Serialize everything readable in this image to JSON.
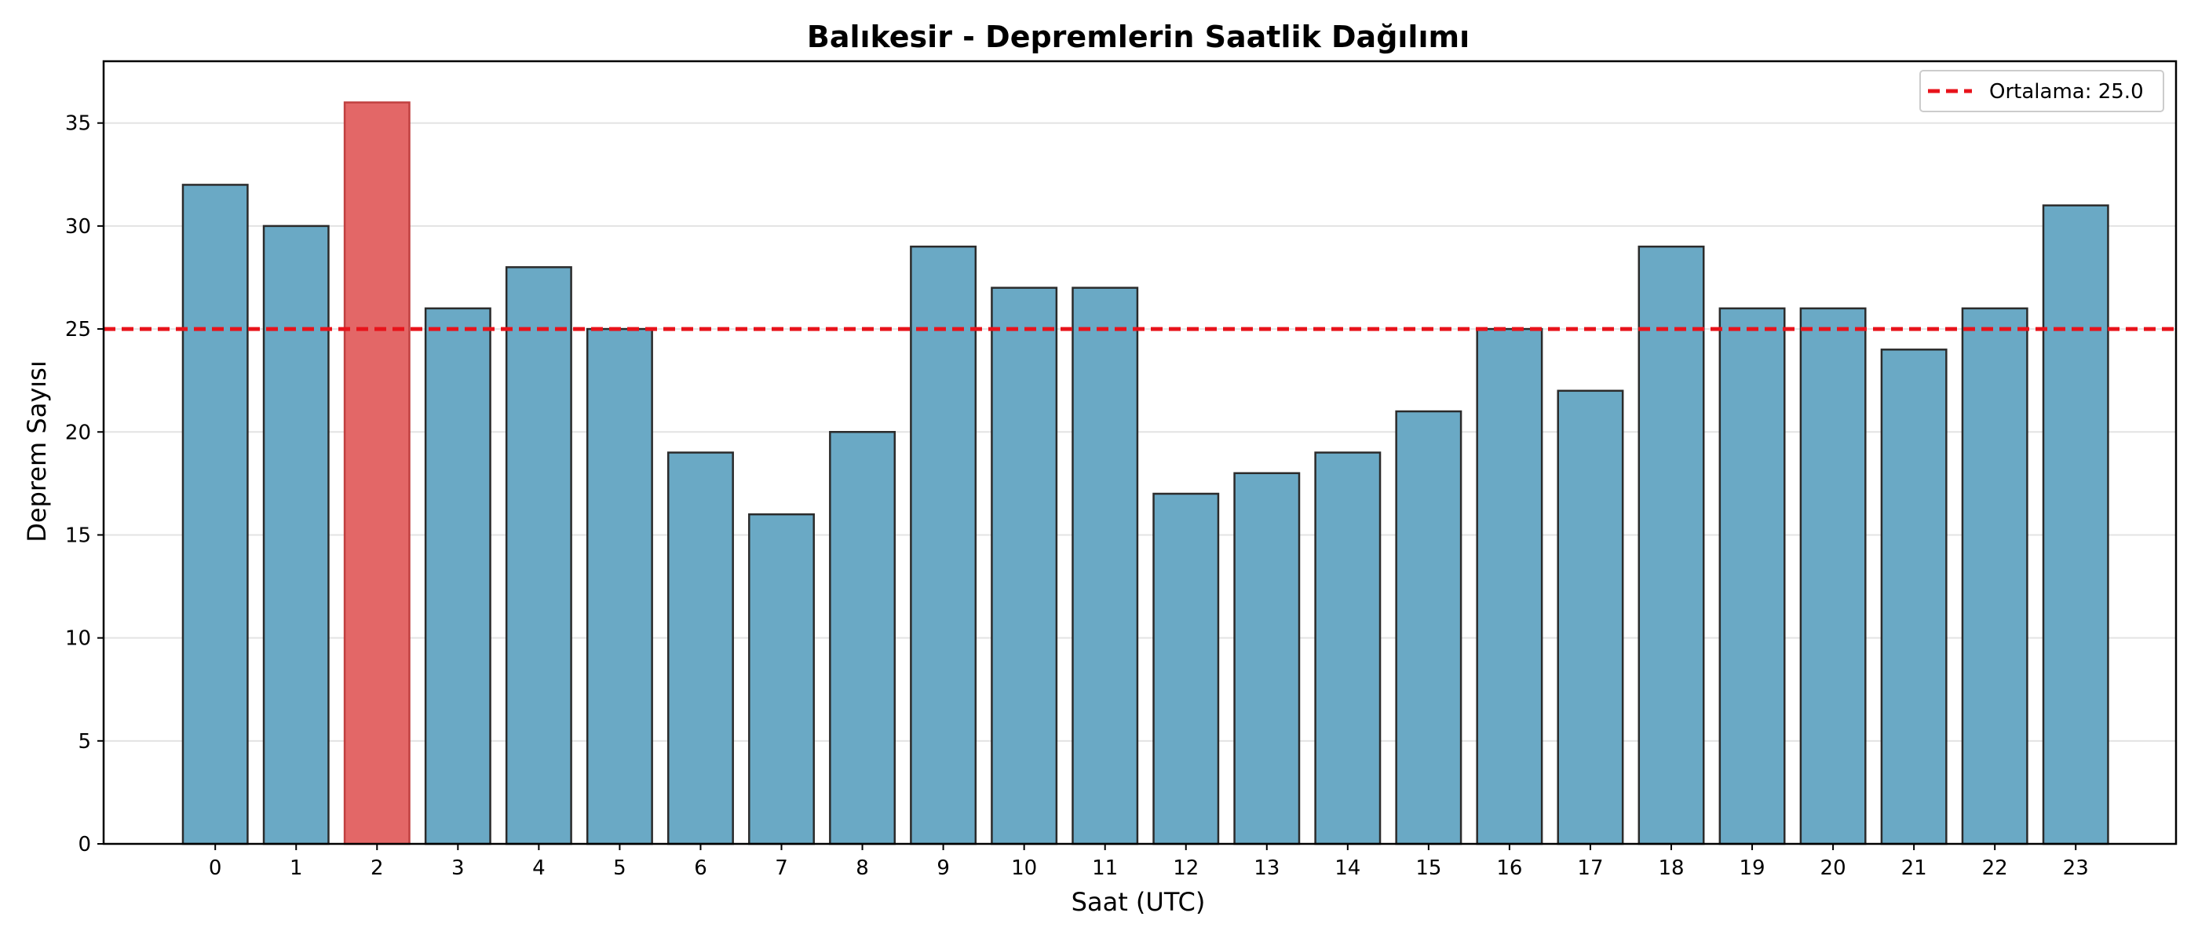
{
  "chart_data": {
    "type": "bar",
    "title": "Balıkesir - Depremlerin Saatlik Dağılımı",
    "xlabel": "Saat (UTC)",
    "ylabel": "Deprem Sayısı",
    "categories": [
      "0",
      "1",
      "2",
      "3",
      "4",
      "5",
      "6",
      "7",
      "8",
      "9",
      "10",
      "11",
      "12",
      "13",
      "14",
      "15",
      "16",
      "17",
      "18",
      "19",
      "20",
      "21",
      "22",
      "23"
    ],
    "values": [
      32,
      30,
      36,
      26,
      28,
      25,
      19,
      16,
      20,
      29,
      27,
      27,
      17,
      18,
      19,
      21,
      25,
      22,
      29,
      26,
      26,
      24,
      26,
      31
    ],
    "highlight_index": 2,
    "ylim": [
      0,
      38
    ],
    "yticks": [
      0,
      5,
      10,
      15,
      20,
      25,
      30,
      35
    ],
    "grid": "y",
    "legend_position": "top-right",
    "mean_line": {
      "value": 25.0,
      "label": "Ortalama: 25.0",
      "style": "dashed"
    },
    "colors": {
      "bar": "#6aa9c5",
      "highlight": "#e36767",
      "bar_edge": "#2b2b2b",
      "mean_line": "#e8131b",
      "grid": "#e3e3e3"
    }
  }
}
